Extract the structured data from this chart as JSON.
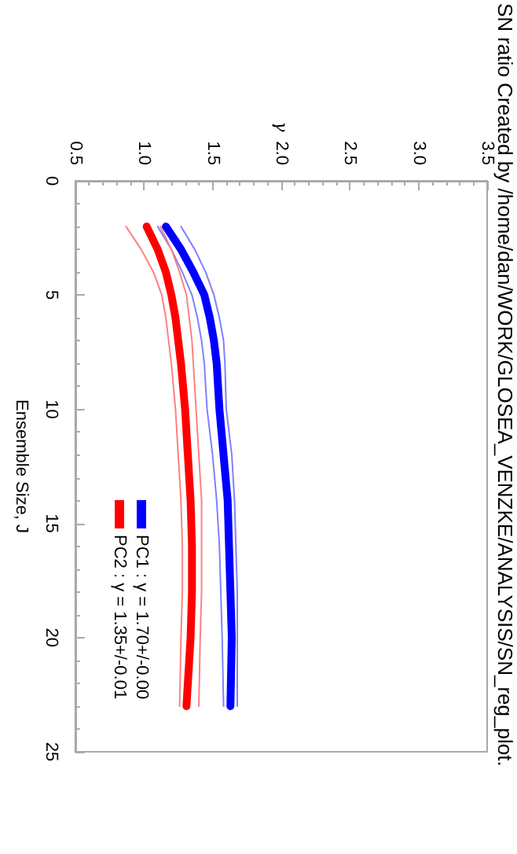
{
  "chart_data": {
    "type": "line",
    "title": "SN ratio Created by /home/dan/WORK/GLOSEA_VENZKE/ANALYSIS/SN_reg_plot.",
    "x2label": "γ",
    "ylabel": "Ensemble Size, J",
    "series": [
      {
        "name": "PC1 : γ = 1.70+/-0.00",
        "color": "#0000ff",
        "x": [
          1.16,
          1.27,
          1.36,
          1.44,
          1.48,
          1.51,
          1.53,
          1.55,
          1.58,
          1.61,
          1.62,
          1.63,
          1.64,
          1.63
        ],
        "values": [
          2,
          3,
          4,
          5,
          6,
          7,
          8,
          10,
          12,
          14,
          16,
          18,
          20,
          23
        ]
      },
      {
        "name": "PC2 : γ = 1.35+/-0.01",
        "color": "#ff0000",
        "x": [
          1.02,
          1.1,
          1.16,
          1.2,
          1.23,
          1.25,
          1.27,
          1.3,
          1.32,
          1.34,
          1.35,
          1.35,
          1.34,
          1.31
        ],
        "values": [
          2,
          3,
          4,
          5,
          6,
          7,
          8,
          10,
          12,
          14,
          16,
          18,
          20,
          23
        ]
      },
      {
        "color": "#8080ff",
        "x": [
          1.1,
          1.2,
          1.28,
          1.35,
          1.39,
          1.42,
          1.44,
          1.46,
          1.5,
          1.53,
          1.55,
          1.56,
          1.57,
          1.58
        ],
        "values": [
          2,
          3,
          4,
          5,
          6,
          7,
          8,
          10,
          12,
          14,
          16,
          18,
          20,
          23
        ]
      },
      {
        "color": "#8080ff",
        "x": [
          1.27,
          1.37,
          1.45,
          1.51,
          1.55,
          1.58,
          1.59,
          1.6,
          1.64,
          1.66,
          1.67,
          1.68,
          1.68,
          1.68
        ],
        "values": [
          2,
          3,
          4,
          5,
          6,
          7,
          8,
          10,
          12,
          14,
          16,
          18,
          20,
          23
        ]
      },
      {
        "color": "#ff8080",
        "x": [
          0.87,
          0.98,
          1.07,
          1.13,
          1.16,
          1.18,
          1.2,
          1.23,
          1.25,
          1.27,
          1.28,
          1.28,
          1.27,
          1.26
        ],
        "values": [
          2,
          3,
          4,
          5,
          6,
          7,
          8,
          10,
          12,
          14,
          16,
          18,
          20,
          23
        ]
      },
      {
        "color": "#ff8080",
        "x": [
          1.12,
          1.2,
          1.26,
          1.31,
          1.33,
          1.35,
          1.36,
          1.38,
          1.4,
          1.42,
          1.42,
          1.42,
          1.41,
          1.4
        ],
        "values": [
          2,
          3,
          4,
          5,
          6,
          7,
          8,
          10,
          12,
          14,
          16,
          18,
          20,
          23
        ]
      }
    ],
    "xlim": [
      0.5,
      3.5
    ],
    "xticks": [
      {
        "value": 0.5,
        "label": "0.5"
      },
      {
        "value": 1.0,
        "label": "1.0"
      },
      {
        "value": 1.5,
        "label": "1.5"
      },
      {
        "value": 2.0,
        "label": "2.0"
      },
      {
        "value": 2.5,
        "label": "2.5"
      },
      {
        "value": 3.0,
        "label": "3.0"
      },
      {
        "value": 3.5,
        "label": "3.5"
      }
    ],
    "ylim": [
      25,
      0
    ],
    "yticks": [
      0,
      5,
      10,
      15,
      20,
      25
    ],
    "legend": "bottom left",
    "marker": "none",
    "line_style": "solid"
  }
}
